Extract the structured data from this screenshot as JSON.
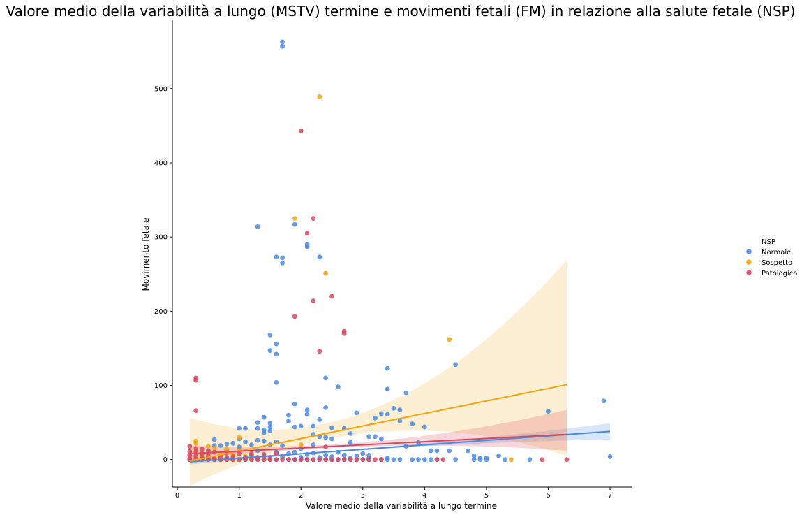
{
  "chart_data": {
    "type": "scatter",
    "title": "Valore medio della variabilità a lungo (MSTV) termine e movimenti fetali (FM) in relazione alla salute fetale (NSP)",
    "xlabel": "Valore medio della variabilità a lungo termine",
    "ylabel": "Movimento fetale",
    "xlim": [
      -0.08,
      7.35
    ],
    "ylim": [
      -37,
      593
    ],
    "xticks": [
      "0",
      "1",
      "2",
      "3",
      "4",
      "5",
      "6",
      "7"
    ],
    "yticks": [
      "0",
      "100",
      "200",
      "300",
      "400",
      "500"
    ],
    "grid": false,
    "legend": {
      "title": "NSP",
      "position": "right"
    },
    "colors": {
      "Normale": "#4a8be0",
      "Sospetto": "#f5a50b",
      "Patologico": "#d9485f"
    },
    "series": [
      {
        "name": "Normale",
        "regression": {
          "x": [
            0.2,
            7.0
          ],
          "y": [
            -3,
            38
          ],
          "ci_low_end": 27,
          "ci_high_end": 49
        },
        "points": [
          [
            1.7,
            563
          ],
          [
            1.7,
            557
          ],
          [
            1.3,
            314
          ],
          [
            1.9,
            317
          ],
          [
            2.1,
            290
          ],
          [
            2.1,
            287
          ],
          [
            1.6,
            273
          ],
          [
            1.7,
            272
          ],
          [
            2.3,
            273
          ],
          [
            1.7,
            265
          ],
          [
            1.5,
            168
          ],
          [
            1.6,
            156
          ],
          [
            1.5,
            147
          ],
          [
            1.6,
            142
          ],
          [
            3.4,
            123
          ],
          [
            4.5,
            128
          ],
          [
            2.4,
            110
          ],
          [
            1.6,
            104
          ],
          [
            2.6,
            98
          ],
          [
            3.4,
            95
          ],
          [
            3.7,
            90
          ],
          [
            6.9,
            79
          ],
          [
            1.9,
            75
          ],
          [
            2.1,
            67
          ],
          [
            2.4,
            70
          ],
          [
            3.5,
            69
          ],
          [
            3.6,
            67
          ],
          [
            6.0,
            65
          ],
          [
            2.1,
            61
          ],
          [
            2.9,
            63
          ],
          [
            3.3,
            62
          ],
          [
            3.4,
            61
          ],
          [
            1.4,
            57
          ],
          [
            1.8,
            60
          ],
          [
            3.2,
            56
          ],
          [
            2.3,
            54
          ],
          [
            3.6,
            52
          ],
          [
            1.3,
            50
          ],
          [
            1.5,
            49
          ],
          [
            1.8,
            52
          ],
          [
            3.8,
            48
          ],
          [
            1.0,
            42
          ],
          [
            1.1,
            42
          ],
          [
            1.5,
            44
          ],
          [
            1.9,
            44
          ],
          [
            2.0,
            45
          ],
          [
            2.2,
            45
          ],
          [
            2.5,
            43
          ],
          [
            2.7,
            42
          ],
          [
            4.0,
            44
          ],
          [
            1.3,
            42
          ],
          [
            1.4,
            40
          ],
          [
            1.5,
            39
          ],
          [
            1.4,
            36
          ],
          [
            2.2,
            34
          ],
          [
            2.8,
            35
          ],
          [
            2.4,
            30
          ],
          [
            2.3,
            31
          ],
          [
            3.1,
            31
          ],
          [
            3.2,
            31
          ],
          [
            3.3,
            28
          ],
          [
            2.5,
            28
          ],
          [
            0.6,
            27
          ],
          [
            1.0,
            28
          ],
          [
            1.1,
            24
          ],
          [
            1.3,
            26
          ],
          [
            1.4,
            25
          ],
          [
            1.6,
            24
          ],
          [
            0.9,
            22
          ],
          [
            0.8,
            21
          ],
          [
            1.2,
            20
          ],
          [
            1.5,
            20
          ],
          [
            1.7,
            19
          ],
          [
            2.2,
            20
          ],
          [
            2.8,
            23
          ],
          [
            3.9,
            23
          ],
          [
            3.7,
            18
          ],
          [
            1.0,
            17
          ],
          [
            0.7,
            19
          ],
          [
            0.6,
            19
          ],
          [
            2.0,
            15
          ],
          [
            4.1,
            12
          ],
          [
            4.2,
            12
          ],
          [
            4.4,
            12
          ],
          [
            4.7,
            12
          ],
          [
            0.5,
            12
          ],
          [
            0.8,
            12
          ],
          [
            1.3,
            12
          ],
          [
            1.6,
            10
          ],
          [
            1.9,
            10
          ],
          [
            2.2,
            9
          ],
          [
            2.6,
            10
          ],
          [
            3.0,
            8
          ],
          [
            0.4,
            8
          ],
          [
            1.2,
            6
          ],
          [
            1.8,
            8
          ],
          [
            2.1,
            7
          ],
          [
            2.4,
            6
          ],
          [
            2.7,
            6
          ],
          [
            2.9,
            5
          ],
          [
            3.1,
            6
          ],
          [
            0.3,
            4
          ],
          [
            0.5,
            3
          ],
          [
            0.8,
            3
          ],
          [
            1.1,
            3
          ],
          [
            1.4,
            4
          ],
          [
            1.7,
            4
          ],
          [
            2.0,
            3
          ],
          [
            2.3,
            3
          ],
          [
            2.5,
            4
          ],
          [
            2.8,
            2
          ],
          [
            3.1,
            2
          ],
          [
            3.4,
            2
          ],
          [
            4.8,
            5
          ],
          [
            5.2,
            5
          ],
          [
            0.2,
            0
          ],
          [
            0.3,
            0
          ],
          [
            0.5,
            0
          ],
          [
            0.6,
            0
          ],
          [
            0.8,
            0
          ],
          [
            0.9,
            0
          ],
          [
            1.0,
            0
          ],
          [
            1.1,
            0
          ],
          [
            1.3,
            0
          ],
          [
            1.4,
            0
          ],
          [
            1.5,
            0
          ],
          [
            1.6,
            0
          ],
          [
            1.8,
            0
          ],
          [
            1.9,
            0
          ],
          [
            2.0,
            0
          ],
          [
            2.1,
            0
          ],
          [
            2.2,
            0
          ],
          [
            2.3,
            0
          ],
          [
            2.4,
            0
          ],
          [
            2.5,
            0
          ],
          [
            2.6,
            0
          ],
          [
            2.7,
            0
          ],
          [
            2.8,
            0
          ],
          [
            2.9,
            0
          ],
          [
            3.0,
            0
          ],
          [
            3.1,
            0
          ],
          [
            3.3,
            0
          ],
          [
            3.4,
            0
          ],
          [
            3.5,
            0
          ],
          [
            3.6,
            0
          ],
          [
            3.8,
            0
          ],
          [
            3.9,
            0
          ],
          [
            4.0,
            0
          ],
          [
            4.1,
            0
          ],
          [
            4.2,
            0
          ],
          [
            4.5,
            0
          ],
          [
            4.8,
            0
          ],
          [
            4.9,
            0
          ],
          [
            4.9,
            2
          ],
          [
            5.0,
            0
          ],
          [
            5.0,
            2
          ],
          [
            5.3,
            0
          ],
          [
            5.7,
            0
          ],
          [
            7.0,
            4
          ]
        ]
      },
      {
        "name": "Sospetto",
        "regression": {
          "x": [
            0.2,
            6.3
          ],
          "y": [
            -2,
            101
          ],
          "ci_low_end": 5,
          "ci_high_end": 269
        },
        "points": [
          [
            2.3,
            489
          ],
          [
            1.9,
            325
          ],
          [
            2.4,
            251
          ],
          [
            4.4,
            162
          ],
          [
            1.0,
            30
          ],
          [
            0.3,
            25
          ],
          [
            0.3,
            22
          ],
          [
            0.5,
            18
          ],
          [
            0.6,
            15
          ],
          [
            0.8,
            14
          ],
          [
            1.0,
            12
          ],
          [
            2.0,
            20
          ],
          [
            0.3,
            12
          ],
          [
            0.4,
            9
          ],
          [
            0.5,
            8
          ],
          [
            0.7,
            7
          ],
          [
            0.9,
            6
          ],
          [
            1.1,
            5
          ],
          [
            0.3,
            5
          ],
          [
            0.4,
            3
          ],
          [
            0.5,
            2
          ],
          [
            0.6,
            2
          ],
          [
            0.7,
            2
          ],
          [
            0.8,
            1
          ],
          [
            0.9,
            1
          ],
          [
            1.0,
            1
          ],
          [
            0.3,
            0
          ],
          [
            0.4,
            0
          ],
          [
            0.5,
            0
          ],
          [
            0.6,
            0
          ],
          [
            0.7,
            0
          ],
          [
            0.8,
            0
          ],
          [
            0.9,
            0
          ],
          [
            1.0,
            0
          ],
          [
            1.2,
            0
          ],
          [
            1.4,
            0
          ],
          [
            5.4,
            0
          ]
        ]
      },
      {
        "name": "Patologico",
        "regression": {
          "x": [
            0.2,
            6.3
          ],
          "y": [
            8,
            34
          ],
          "ci_low_end": 12,
          "ci_high_end": 67
        },
        "points": [
          [
            2.0,
            443
          ],
          [
            2.2,
            325
          ],
          [
            2.1,
            305
          ],
          [
            2.5,
            220
          ],
          [
            2.2,
            214
          ],
          [
            1.9,
            193
          ],
          [
            2.7,
            173
          ],
          [
            2.7,
            170
          ],
          [
            2.3,
            146
          ],
          [
            0.3,
            110
          ],
          [
            0.3,
            107
          ],
          [
            0.3,
            66
          ],
          [
            2.4,
            17
          ],
          [
            0.2,
            18
          ],
          [
            0.3,
            15
          ],
          [
            0.4,
            14
          ],
          [
            0.5,
            12
          ],
          [
            0.6,
            10
          ],
          [
            0.8,
            9
          ],
          [
            1.0,
            8
          ],
          [
            1.2,
            8
          ],
          [
            1.4,
            7
          ],
          [
            1.6,
            8
          ],
          [
            0.2,
            11
          ],
          [
            0.3,
            10
          ],
          [
            0.4,
            8
          ],
          [
            0.2,
            6
          ],
          [
            0.3,
            5
          ],
          [
            0.5,
            5
          ],
          [
            0.7,
            4
          ],
          [
            0.9,
            4
          ],
          [
            1.1,
            3
          ],
          [
            1.3,
            3
          ],
          [
            1.5,
            3
          ],
          [
            0.2,
            2
          ],
          [
            0.4,
            2
          ],
          [
            0.6,
            2
          ],
          [
            0.8,
            2
          ],
          [
            0.2,
            0
          ],
          [
            0.3,
            0
          ],
          [
            0.4,
            0
          ],
          [
            0.5,
            0
          ],
          [
            0.6,
            0
          ],
          [
            0.7,
            0
          ],
          [
            0.8,
            0
          ],
          [
            0.9,
            0
          ],
          [
            1.0,
            0
          ],
          [
            1.1,
            0
          ],
          [
            1.2,
            0
          ],
          [
            1.3,
            0
          ],
          [
            1.4,
            0
          ],
          [
            1.5,
            0
          ],
          [
            1.6,
            0
          ],
          [
            1.7,
            0
          ],
          [
            1.8,
            0
          ],
          [
            1.9,
            0
          ],
          [
            2.0,
            0
          ],
          [
            2.1,
            0
          ],
          [
            2.2,
            0
          ],
          [
            2.3,
            0
          ],
          [
            2.4,
            0
          ],
          [
            2.5,
            0
          ],
          [
            2.6,
            0
          ],
          [
            2.7,
            0
          ],
          [
            2.8,
            0
          ],
          [
            2.9,
            0
          ],
          [
            3.0,
            0
          ],
          [
            3.1,
            0
          ],
          [
            3.2,
            0
          ],
          [
            3.3,
            0
          ],
          [
            4.2,
            0
          ],
          [
            4.3,
            0
          ],
          [
            5.9,
            0
          ],
          [
            6.3,
            0
          ]
        ]
      }
    ]
  }
}
